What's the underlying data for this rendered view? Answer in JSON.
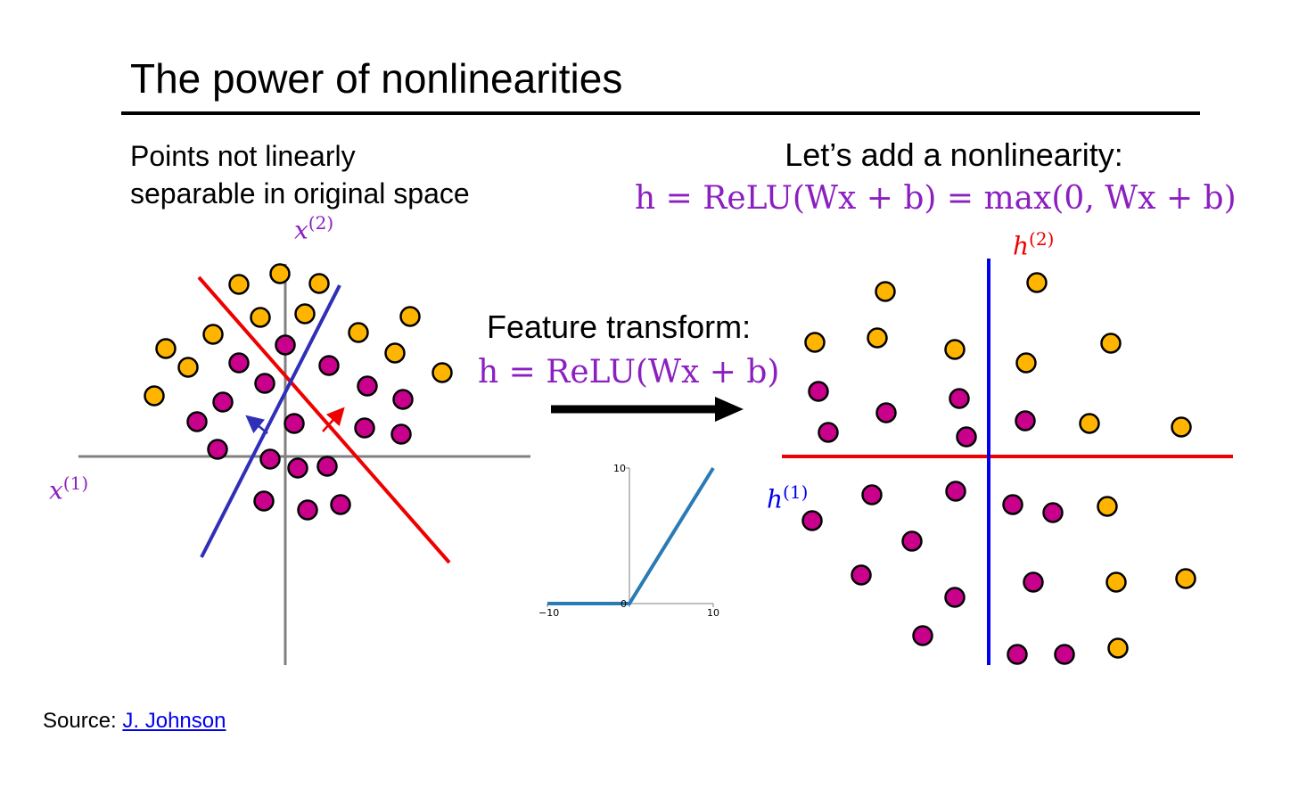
{
  "slide": {
    "title": "The power of nonlinearities",
    "left_caption_line1": "Points not linearly",
    "left_caption_line2": "separable in original space",
    "right_heading": "Let’s add a nonlinearity:",
    "right_equation": "h = ReLU(Wx + b) = max(0, Wx + b)",
    "transform_label": "Feature transform:",
    "transform_equation": "h = ReLU(Wx + b)",
    "source_prefix": "Source: ",
    "source_link": "J. Johnson"
  },
  "left_plot": {
    "x_axis_label": "x",
    "x_axis_sup": "(1)",
    "y_axis_label": "x",
    "y_axis_sup": "(2)"
  },
  "right_plot": {
    "x_axis_label": "h",
    "x_axis_sup": "(1)",
    "y_axis_label": "h",
    "y_axis_sup": "(2)"
  },
  "relu_plot": {
    "x_ticks": [
      "−10",
      "0",
      "10"
    ],
    "y_ticks": [
      "10"
    ]
  },
  "colors": {
    "orange_point": "#ffb400",
    "purple_point": "#c8008c",
    "red_line": "#ee0000",
    "blue_line": "#2f2fb8",
    "h_blue_line": "#0000ee",
    "math_purple": "#8b1fc0",
    "relu_curve": "#2a7ab5",
    "axis_gray": "#808080"
  }
}
